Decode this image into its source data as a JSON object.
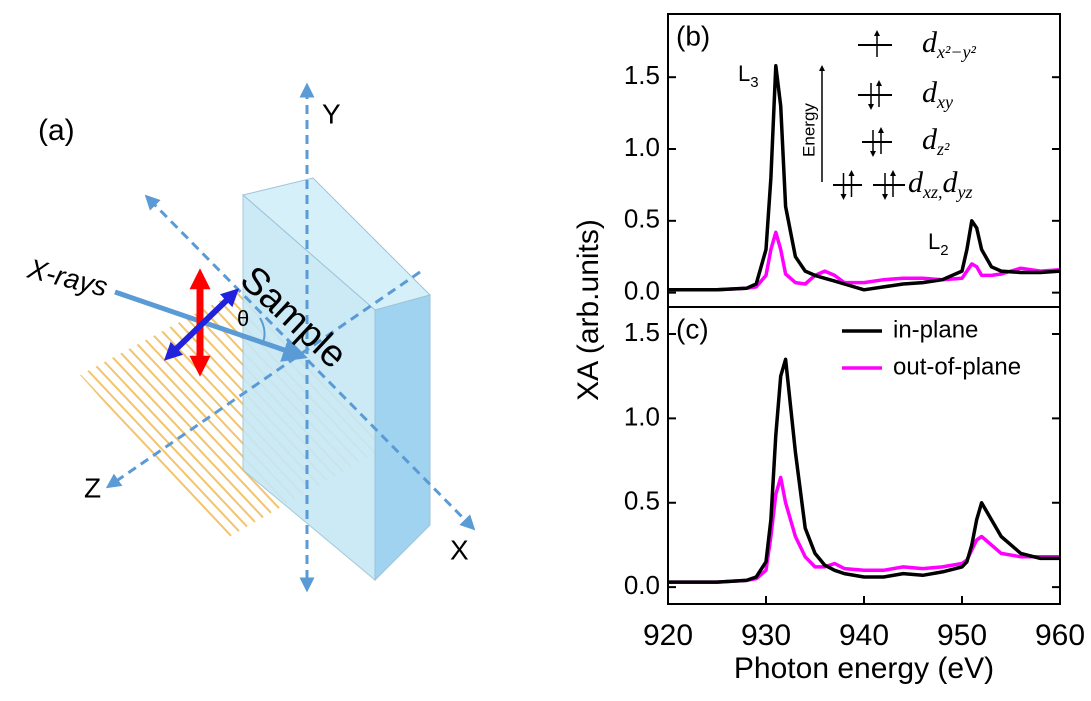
{
  "diagram": {
    "label": "(a)",
    "axis_y": "Y",
    "axis_x": "X",
    "axis_z": "Z",
    "beam": "X-rays",
    "sample": "Sample",
    "angle": "θ"
  },
  "chart_data": [
    {
      "type": "line",
      "panel_label": "(b)",
      "ylabel": "XA (arb.units)",
      "x": [
        920,
        925,
        928,
        929,
        930,
        930.5,
        931,
        931.5,
        932,
        933,
        934,
        935,
        936,
        937,
        938,
        940,
        942,
        944,
        946,
        948,
        950,
        950.5,
        951,
        951.5,
        952,
        953,
        954,
        956,
        958,
        960
      ],
      "series": [
        {
          "color": "#000000",
          "values": [
            0.02,
            0.02,
            0.03,
            0.06,
            0.3,
            0.8,
            1.58,
            1.3,
            0.6,
            0.25,
            0.15,
            0.12,
            0.1,
            0.08,
            0.06,
            0.02,
            0.04,
            0.06,
            0.07,
            0.09,
            0.15,
            0.3,
            0.5,
            0.45,
            0.3,
            0.18,
            0.15,
            0.14,
            0.14,
            0.15
          ]
        },
        {
          "color": "#ff00ff",
          "values": [
            0.02,
            0.02,
            0.03,
            0.04,
            0.12,
            0.3,
            0.42,
            0.3,
            0.13,
            0.07,
            0.06,
            0.12,
            0.15,
            0.12,
            0.07,
            0.07,
            0.09,
            0.1,
            0.1,
            0.09,
            0.1,
            0.15,
            0.2,
            0.18,
            0.12,
            0.12,
            0.13,
            0.17,
            0.15,
            0.16
          ]
        }
      ],
      "xlim": [
        920,
        960
      ],
      "ylim": [
        -0.1,
        1.94
      ],
      "yticks": [
        {
          "value": 0,
          "label": "0.0"
        },
        0.5,
        {
          "value": 1,
          "label": "1.0"
        },
        1.5
      ],
      "annotations": [
        {
          "text": "L",
          "sub": "3"
        },
        {
          "text": "L",
          "sub": "2"
        }
      ],
      "inset": {
        "axis": "Energy",
        "levels": [
          [
            {
              "text": "d",
              "sub": "x²−y²"
            }
          ],
          [
            {
              "text": "d",
              "sub": "xy"
            }
          ],
          [
            {
              "text": "d",
              "sub": "z²"
            }
          ],
          [
            {
              "text": "d",
              "sub": "xz,"
            },
            {
              "text": "d",
              "sub": "yz"
            }
          ]
        ]
      }
    },
    {
      "type": "line",
      "panel_label": "(c)",
      "xlabel": "Photon energy (eV)",
      "x": [
        920,
        925,
        928,
        929,
        930,
        930.5,
        931,
        931.5,
        932,
        933,
        934,
        935,
        936,
        937,
        938,
        940,
        942,
        944,
        946,
        948,
        950,
        950.5,
        951,
        951.5,
        952,
        953,
        954,
        956,
        958,
        960
      ],
      "series": [
        {
          "name": "in-plane",
          "color": "#000000",
          "values": [
            0.03,
            0.03,
            0.04,
            0.06,
            0.15,
            0.4,
            0.9,
            1.25,
            1.35,
            0.8,
            0.35,
            0.2,
            0.13,
            0.1,
            0.08,
            0.06,
            0.06,
            0.08,
            0.07,
            0.09,
            0.12,
            0.15,
            0.25,
            0.4,
            0.5,
            0.4,
            0.3,
            0.2,
            0.17,
            0.17
          ]
        },
        {
          "name": "out-of-plane",
          "color": "#ff00ff",
          "values": [
            0.03,
            0.03,
            0.04,
            0.05,
            0.1,
            0.3,
            0.55,
            0.65,
            0.5,
            0.3,
            0.18,
            0.12,
            0.12,
            0.14,
            0.11,
            0.1,
            0.1,
            0.12,
            0.11,
            0.12,
            0.14,
            0.16,
            0.22,
            0.28,
            0.3,
            0.25,
            0.2,
            0.18,
            0.18,
            0.18
          ]
        }
      ],
      "xlim": [
        920,
        960
      ],
      "ylim": [
        -0.1,
        1.66
      ],
      "xticks": [
        920,
        930,
        940,
        950,
        960
      ],
      "yticks": [
        {
          "value": 0,
          "label": "0.0"
        },
        0.5,
        {
          "value": 1,
          "label": "1.0"
        },
        1.5
      ],
      "legend": "upper right"
    }
  ]
}
